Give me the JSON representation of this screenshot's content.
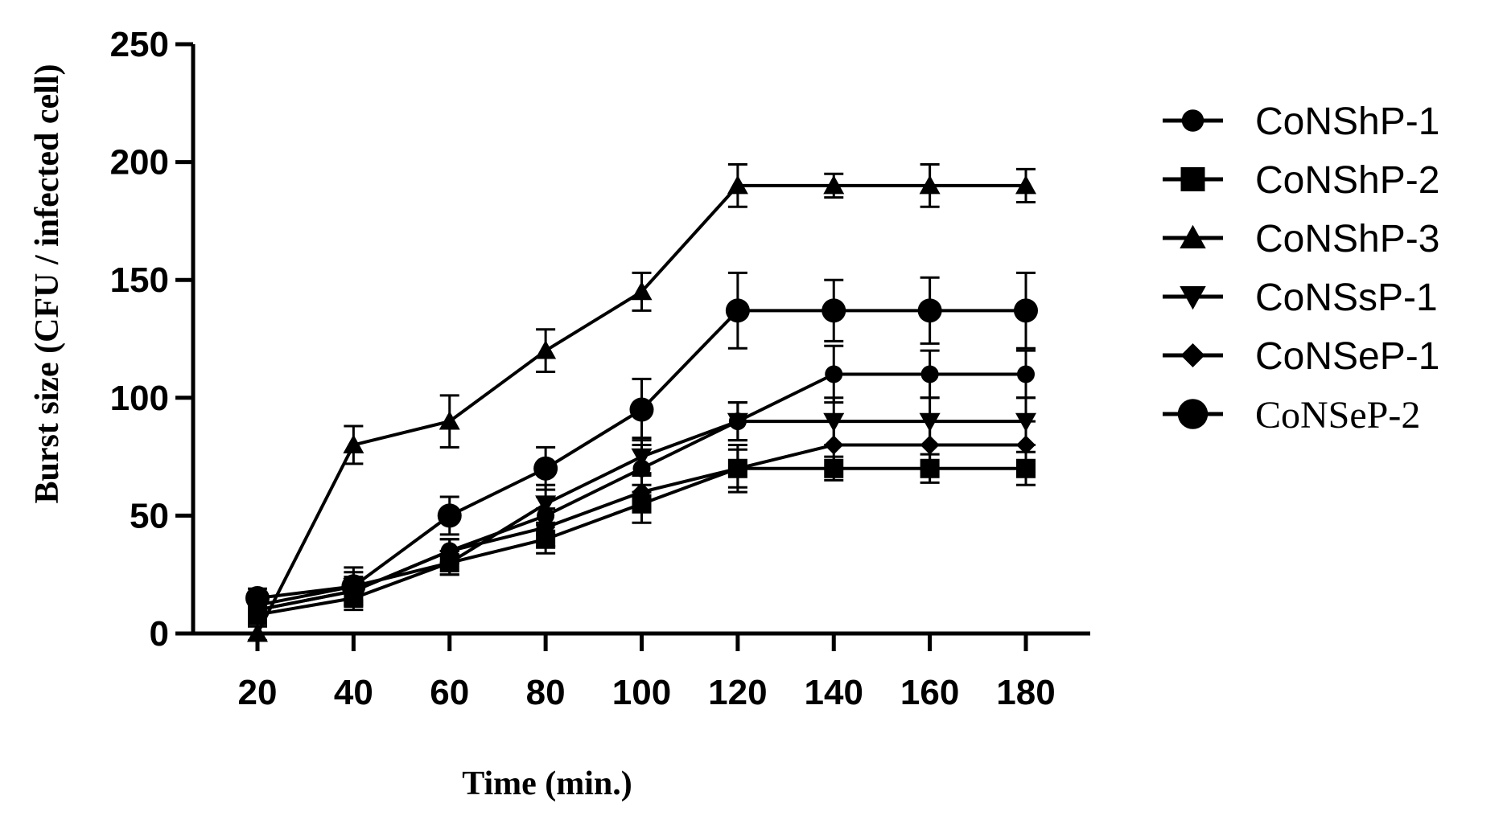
{
  "chart_data": {
    "type": "line",
    "title": "",
    "xlabel": "Time (min.)",
    "ylabel": "Burst size (CFU / infected cell)",
    "x": [
      20,
      40,
      60,
      80,
      100,
      120,
      140,
      160,
      180
    ],
    "x_tick_labels": [
      "20",
      "40",
      "60",
      "80",
      "100",
      "120",
      "140",
      "160",
      "180"
    ],
    "ylim": [
      0,
      250
    ],
    "y_ticks": [
      0,
      50,
      100,
      150,
      200,
      250
    ],
    "y_tick_labels": [
      "0",
      "50",
      "100",
      "150",
      "200",
      "250"
    ],
    "legend_position": "right",
    "grid": false,
    "series": [
      {
        "name": "CoNShP-1",
        "marker": "circle",
        "values": [
          10,
          18,
          35,
          50,
          70,
          90,
          110,
          110,
          110
        ],
        "errors": [
          4,
          6,
          5,
          8,
          10,
          8,
          12,
          10,
          10
        ]
      },
      {
        "name": "CoNShP-2",
        "marker": "square",
        "values": [
          8,
          15,
          30,
          40,
          55,
          70,
          70,
          70,
          70
        ],
        "errors": [
          4,
          5,
          5,
          6,
          8,
          8,
          5,
          6,
          7
        ]
      },
      {
        "name": "CoNShP-3",
        "marker": "triangle-up",
        "values": [
          0,
          80,
          90,
          120,
          145,
          190,
          190,
          190,
          190
        ],
        "errors": [
          3,
          8,
          11,
          9,
          8,
          9,
          5,
          9,
          7
        ]
      },
      {
        "name": "CoNSsP-1",
        "marker": "triangle-down",
        "values": [
          12,
          20,
          30,
          55,
          75,
          90,
          90,
          90,
          90
        ],
        "errors": [
          4,
          6,
          5,
          8,
          8,
          8,
          10,
          10,
          10
        ]
      },
      {
        "name": "CoNSeP-1",
        "marker": "diamond",
        "values": [
          10,
          18,
          35,
          45,
          60,
          70,
          80,
          80,
          80
        ],
        "errors": [
          4,
          5,
          5,
          8,
          8,
          10,
          10,
          10,
          10
        ]
      },
      {
        "name": "CoNSeP-2",
        "marker": "circle-large",
        "values": [
          15,
          20,
          50,
          70,
          95,
          137,
          137,
          137,
          137
        ],
        "errors": [
          4,
          8,
          8,
          9,
          13,
          16,
          13,
          14,
          16
        ]
      }
    ]
  }
}
